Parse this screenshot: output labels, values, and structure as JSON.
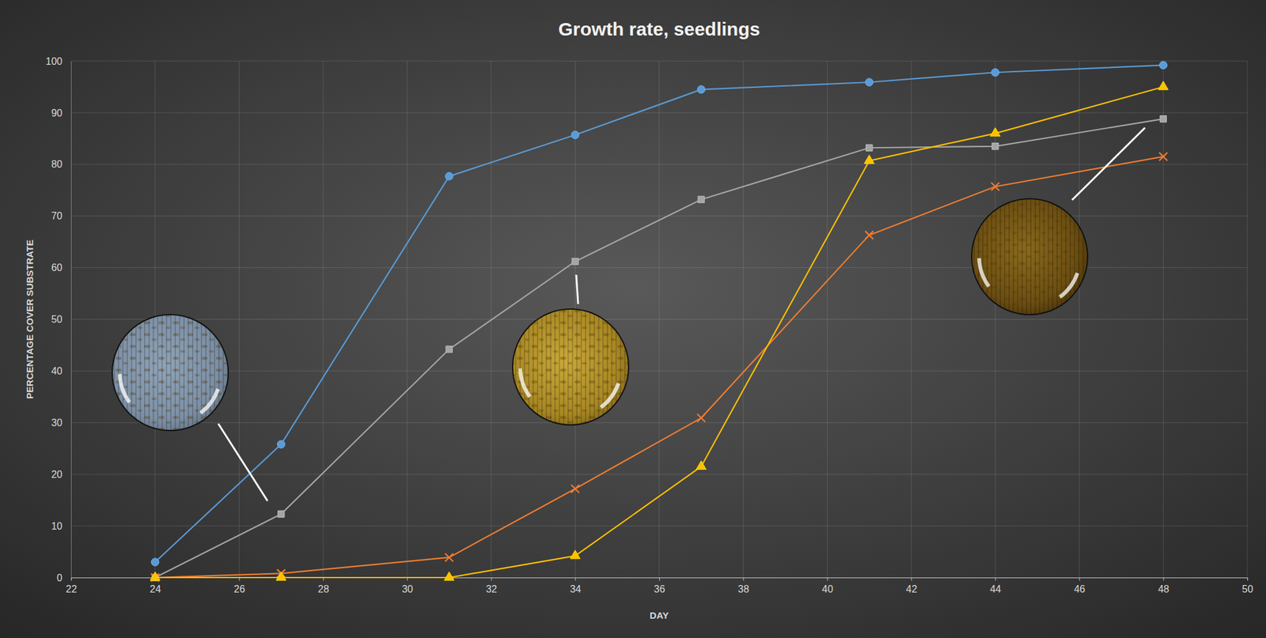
{
  "chart_data": {
    "type": "line",
    "title": "Growth rate, seedlings",
    "x_label": "DAY",
    "y_label": "PERCENTAGE COVER SUBSTRATE",
    "x": [
      24,
      27,
      31,
      34,
      37,
      41,
      44,
      48
    ],
    "series": [
      {
        "color": "#5b9bd5",
        "marker": "circle",
        "values": [
          3,
          25.8,
          77.7,
          85.7,
          94.5,
          95.9,
          97.8,
          99.2
        ]
      },
      {
        "color": "#a5a5a5",
        "marker": "square",
        "values": [
          0,
          12.3,
          44.2,
          61.2,
          73.2,
          83.2,
          83.5,
          88.8
        ]
      },
      {
        "color": "#ed7d31",
        "marker": "x",
        "values": [
          0,
          0.8,
          3.9,
          17.2,
          30.9,
          66.3,
          75.7,
          81.5
        ]
      },
      {
        "color": "#ffc000",
        "marker": "triangle",
        "values": [
          0,
          0,
          0,
          4.2,
          21.5,
          80.7,
          86.0,
          95.0
        ]
      }
    ],
    "xlim": [
      22,
      50
    ],
    "xticks": [
      22,
      24,
      26,
      28,
      30,
      32,
      34,
      36,
      38,
      40,
      42,
      44,
      46,
      48,
      50
    ],
    "ylim": [
      0,
      100
    ],
    "yticks": [
      0,
      10,
      20,
      30,
      40,
      50,
      60,
      70,
      80,
      90,
      100
    ],
    "grid": true
  }
}
